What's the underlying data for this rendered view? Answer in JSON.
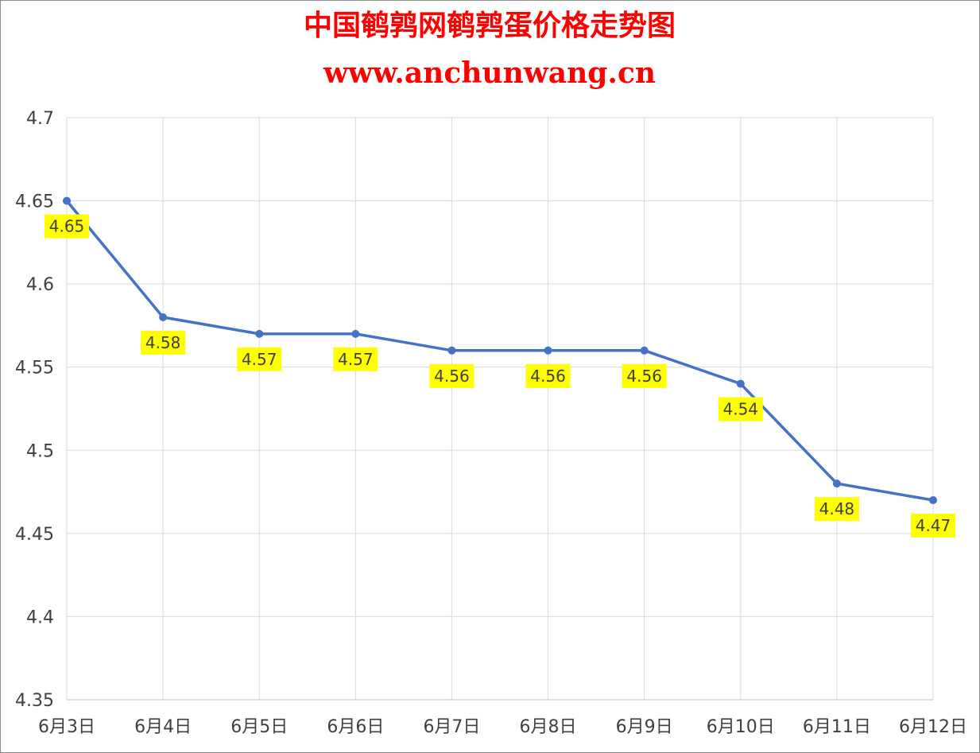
{
  "chart_data": {
    "type": "line",
    "title": "中国鹌鹑网鹌鹑蛋价格走势图",
    "subtitle": "www.anchunwang.cn",
    "categories": [
      "6月3日",
      "6月4日",
      "6月5日",
      "6月6日",
      "6月7日",
      "6月8日",
      "6月9日",
      "6月10日",
      "6月11日",
      "6月12日"
    ],
    "series": [
      {
        "color": "#4472c4",
        "values": [
          4.65,
          4.58,
          4.57,
          4.57,
          4.56,
          4.56,
          4.56,
          4.54,
          4.48,
          4.47
        ]
      }
    ],
    "ylim": [
      4.35,
      4.7
    ],
    "yticks": [
      4.35,
      4.4,
      4.45,
      4.5,
      4.55,
      4.6,
      4.65,
      4.7
    ],
    "grid": true
  }
}
